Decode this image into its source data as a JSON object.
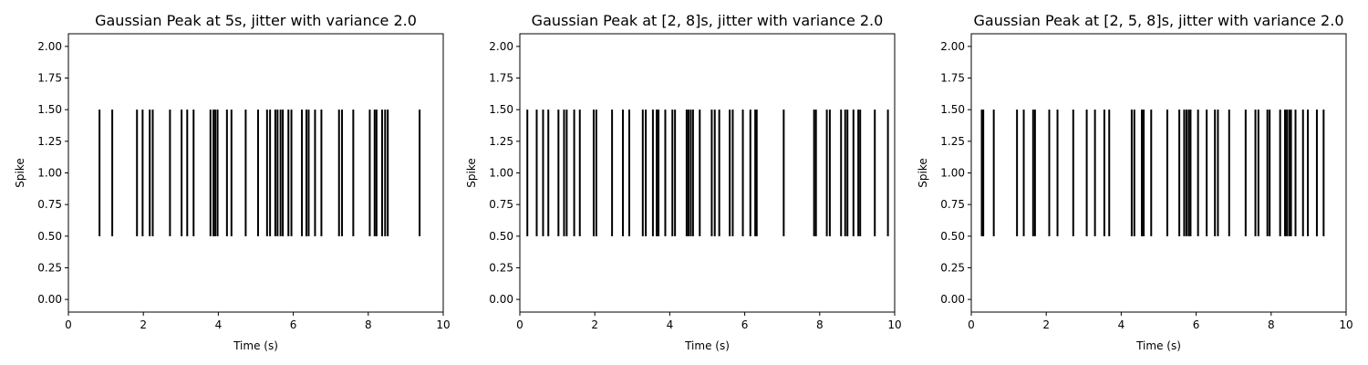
{
  "chart_data": [
    {
      "type": "eventplot",
      "title": "Gaussian Peak at 5s, jitter with variance 2.0",
      "xlabel": "Time (s)",
      "ylabel": "Spike",
      "xlim": [
        0,
        10
      ],
      "ylim": [
        -0.1,
        2.1
      ],
      "xticks": [
        0,
        2,
        4,
        6,
        8,
        10
      ],
      "xtick_labels": [
        "0",
        "2",
        "4",
        "6",
        "8",
        "10"
      ],
      "yticks": [
        0.0,
        0.25,
        0.5,
        0.75,
        1.0,
        1.25,
        1.5,
        1.75,
        2.0
      ],
      "ytick_labels": [
        "0.00",
        "0.25",
        "0.50",
        "0.75",
        "1.00",
        "1.25",
        "1.50",
        "1.75",
        "2.00"
      ],
      "spike_range": [
        0.5,
        1.5
      ],
      "color": "#000000",
      "spikes": [
        0.83,
        1.17,
        1.83,
        1.98,
        2.17,
        2.25,
        2.71,
        3.02,
        3.17,
        3.34,
        3.79,
        3.87,
        3.92,
        3.98,
        4.23,
        4.35,
        4.73,
        5.06,
        5.3,
        5.38,
        5.52,
        5.58,
        5.66,
        5.72,
        5.87,
        5.95,
        6.23,
        6.35,
        6.41,
        6.58,
        6.75,
        7.22,
        7.3,
        7.6,
        8.04,
        8.17,
        8.22,
        8.37,
        8.45,
        8.52,
        9.37
      ]
    },
    {
      "type": "eventplot",
      "title": "Gaussian Peak at [2, 8]s, jitter with variance 2.0",
      "xlabel": "Time (s)",
      "ylabel": "Spike",
      "xlim": [
        0,
        10
      ],
      "ylim": [
        -0.1,
        2.1
      ],
      "xticks": [
        0,
        2,
        4,
        6,
        8,
        10
      ],
      "xtick_labels": [
        "0",
        "2",
        "4",
        "6",
        "8",
        "10"
      ],
      "yticks": [
        0.0,
        0.25,
        0.5,
        0.75,
        1.0,
        1.25,
        1.5,
        1.75,
        2.0
      ],
      "ytick_labels": [
        "0.00",
        "0.25",
        "0.50",
        "0.75",
        "1.00",
        "1.25",
        "1.50",
        "1.75",
        "2.00"
      ],
      "spike_range": [
        0.5,
        1.5
      ],
      "color": "#000000",
      "spikes": [
        0.2,
        0.45,
        0.62,
        0.76,
        1.03,
        1.18,
        1.25,
        1.45,
        1.6,
        1.97,
        2.04,
        2.46,
        2.75,
        2.92,
        3.28,
        3.36,
        3.55,
        3.65,
        3.7,
        3.88,
        4.07,
        4.14,
        4.45,
        4.5,
        4.56,
        4.62,
        4.8,
        5.12,
        5.2,
        5.32,
        5.6,
        5.68,
        5.95,
        6.15,
        6.28,
        6.32,
        7.04,
        7.85,
        7.9,
        8.19,
        8.27,
        8.57,
        8.68,
        8.74,
        8.9,
        9.03,
        9.08,
        9.47,
        9.82
      ]
    },
    {
      "type": "eventplot",
      "title": "Gaussian Peak at [2, 5, 8]s, jitter with variance 2.0",
      "xlabel": "Time (s)",
      "ylabel": "Spike",
      "xlim": [
        0,
        10
      ],
      "ylim": [
        -0.1,
        2.1
      ],
      "xticks": [
        0,
        2,
        4,
        6,
        8,
        10
      ],
      "xtick_labels": [
        "0",
        "2",
        "4",
        "6",
        "8",
        "10"
      ],
      "yticks": [
        0.0,
        0.25,
        0.5,
        0.75,
        1.0,
        1.25,
        1.5,
        1.75,
        2.0
      ],
      "ytick_labels": [
        "0.00",
        "0.25",
        "0.50",
        "0.75",
        "1.00",
        "1.25",
        "1.50",
        "1.75",
        "2.00"
      ],
      "spike_range": [
        0.5,
        1.5
      ],
      "color": "#000000",
      "spikes": [
        0.28,
        0.32,
        0.6,
        1.22,
        1.4,
        1.65,
        1.7,
        2.08,
        2.3,
        2.72,
        3.08,
        3.3,
        3.55,
        3.68,
        4.28,
        4.35,
        4.55,
        4.6,
        4.8,
        5.23,
        5.55,
        5.68,
        5.74,
        5.8,
        5.85,
        6.05,
        6.28,
        6.5,
        6.58,
        6.88,
        7.32,
        7.58,
        7.66,
        7.9,
        7.96,
        8.24,
        8.37,
        8.42,
        8.48,
        8.53,
        8.65,
        8.85,
        8.98,
        9.22,
        9.4
      ]
    }
  ]
}
